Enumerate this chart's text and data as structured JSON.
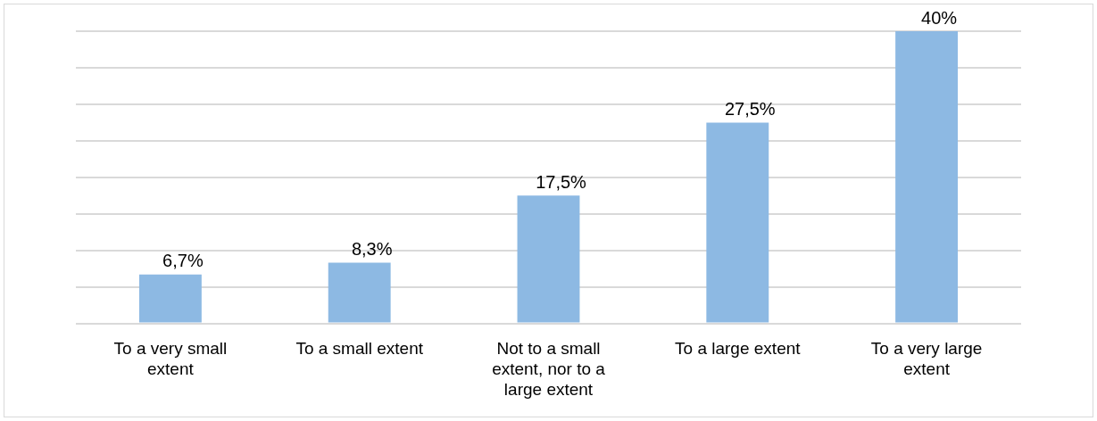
{
  "chart_data": {
    "type": "bar",
    "categories": [
      "To a very small extent",
      "To a small extent",
      "Not to a small extent, nor to a large extent",
      "To a large extent",
      "To a very large extent"
    ],
    "values": [
      6.7,
      8.3,
      17.5,
      27.5,
      40
    ],
    "value_labels": [
      "6,7%",
      "8,3%",
      "17,5%",
      "27,5%",
      "40%"
    ],
    "color": "#8db9e3",
    "grid": "y",
    "tick_labels": "x"
  }
}
